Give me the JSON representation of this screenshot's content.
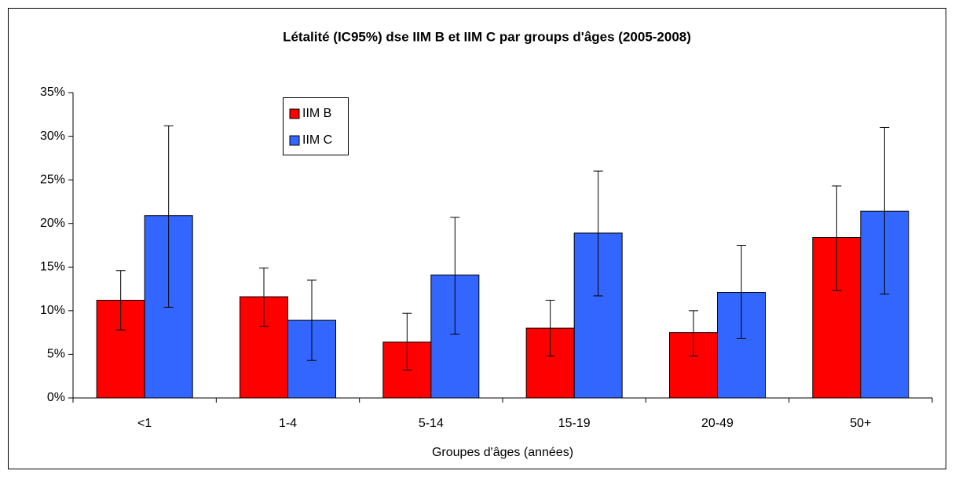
{
  "chart_data": {
    "type": "bar",
    "title": "Létalité (IC95%) dse IIM B et IIM C par groups d'âges (2005-2008)",
    "x_label": "Groupes d'âges (années)",
    "categories": [
      "<1",
      "1-4",
      "5-14",
      "15-19",
      "20-49",
      "50+"
    ],
    "series": [
      {
        "name": "IIM B",
        "color": "#ff0000",
        "values": [
          11.2,
          11.6,
          6.4,
          8.0,
          7.5,
          18.4
        ],
        "low": [
          7.8,
          8.2,
          3.2,
          4.8,
          4.8,
          12.3
        ],
        "high": [
          14.6,
          14.9,
          9.7,
          11.2,
          10.0,
          24.3
        ]
      },
      {
        "name": "IIM C",
        "color": "#3366ff",
        "values": [
          20.9,
          8.9,
          14.1,
          18.9,
          12.1,
          21.4
        ],
        "low": [
          10.4,
          4.3,
          7.3,
          11.7,
          6.8,
          11.9
        ],
        "high": [
          31.2,
          13.5,
          20.7,
          26.0,
          17.5,
          31.0
        ]
      }
    ],
    "ylim": [
      0,
      35
    ],
    "yticks": [
      {
        "value": 0,
        "label": "0%"
      },
      {
        "value": 5,
        "label": "5%"
      },
      {
        "value": 10,
        "label": "10%"
      },
      {
        "value": 15,
        "label": "15%"
      },
      {
        "value": 20,
        "label": "20%"
      },
      {
        "value": 25,
        "label": "25%"
      },
      {
        "value": 30,
        "label": "30%"
      },
      {
        "value": 35,
        "label": "35%"
      }
    ]
  }
}
